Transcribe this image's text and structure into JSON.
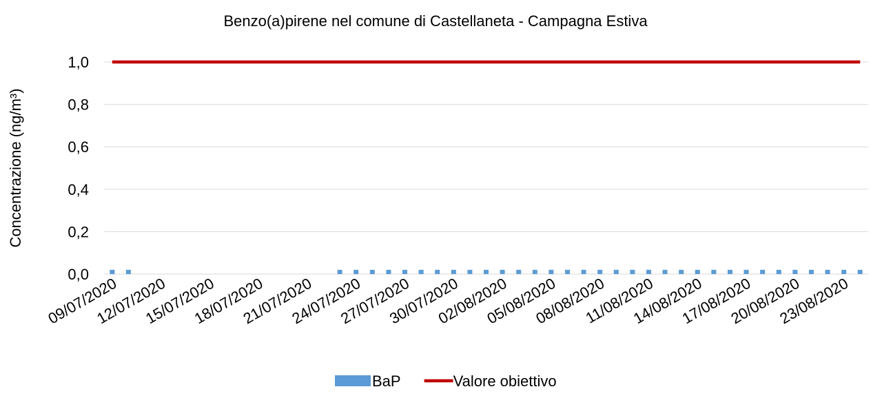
{
  "chart_data": {
    "type": "bar",
    "title": "Benzo(a)pirene nel comune di Castellaneta - Campagna Estiva",
    "y_label": "Concentrazione (ng/m³)",
    "categories": [
      "09/07/2020",
      null,
      null,
      "12/07/2020",
      null,
      null,
      "15/07/2020",
      null,
      null,
      "18/07/2020",
      null,
      null,
      "21/07/2020",
      null,
      null,
      "24/07/2020",
      null,
      null,
      "27/07/2020",
      null,
      null,
      "30/07/2020",
      null,
      null,
      "02/08/2020",
      null,
      null,
      "05/08/2020",
      null,
      null,
      "08/08/2020",
      null,
      null,
      "11/08/2020",
      null,
      null,
      "14/08/2020",
      null,
      null,
      "17/08/2020",
      null,
      null,
      "20/08/2020",
      null,
      null,
      "23/08/2020",
      null
    ],
    "series": [
      {
        "name": "BaP",
        "type": "bar",
        "color": "#5b9bd5",
        "values": [
          0.02,
          0.02,
          null,
          null,
          null,
          null,
          null,
          null,
          null,
          null,
          null,
          null,
          null,
          null,
          0.02,
          0.02,
          0.02,
          0.02,
          0.02,
          0.02,
          0.02,
          0.02,
          0.02,
          0.02,
          0.02,
          0.02,
          0.02,
          0.02,
          0.02,
          0.02,
          0.02,
          0.02,
          0.02,
          0.02,
          0.02,
          0.02,
          0.02,
          0.02,
          0.02,
          0.02,
          0.02,
          0.02,
          0.02,
          0.02,
          0.02,
          0.02,
          0.02
        ]
      },
      {
        "name": "Valore obiettivo",
        "type": "line",
        "color": "#c00000",
        "values": [
          1,
          1,
          1,
          1,
          1,
          1,
          1,
          1,
          1,
          1,
          1,
          1,
          1,
          1,
          1,
          1,
          1,
          1,
          1,
          1,
          1,
          1,
          1,
          1,
          1,
          1,
          1,
          1,
          1,
          1,
          1,
          1,
          1,
          1,
          1,
          1,
          1,
          1,
          1,
          1,
          1,
          1,
          1,
          1,
          1,
          1,
          1
        ]
      }
    ],
    "ylim": [
      0,
      1
    ],
    "yticks": [
      {
        "value": 0,
        "label": "0,0"
      },
      {
        "value": 0.2,
        "label": "0,2"
      },
      {
        "value": 0.4,
        "label": "0,4"
      },
      {
        "value": 0.6,
        "label": "0,6"
      },
      {
        "value": 0.8,
        "label": "0,8"
      },
      {
        "value": 1,
        "label": "1,0"
      }
    ],
    "grid": true,
    "legend": "bottom"
  }
}
